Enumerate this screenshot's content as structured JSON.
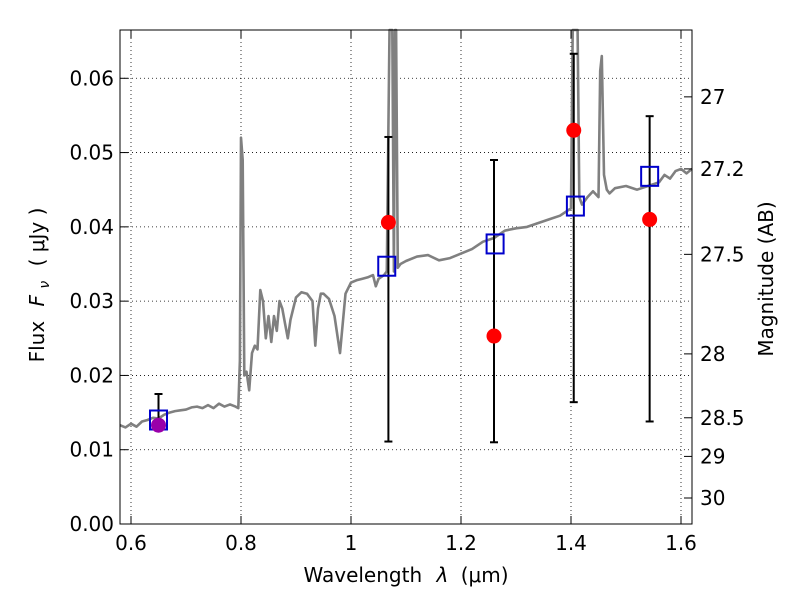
{
  "chart_data": {
    "type": "line",
    "xlabel": "Wavelength",
    "xlabel_symbol": "λ",
    "xlabel_unit": "(μm)",
    "ylabel": "Flux",
    "ylabel_symbol": "F",
    "ylabel_subscript": "ν",
    "ylabel_unit": "( μJy )",
    "y2label": "Magnitude (AB)",
    "xlim": [
      0.58,
      1.62
    ],
    "ylim": [
      0.0,
      0.0665
    ],
    "grid": true,
    "x_ticks": [
      {
        "value": 0.6,
        "label": "0.6"
      },
      {
        "value": 0.8,
        "label": "0.8"
      },
      {
        "value": 1.0,
        "label": "1"
      },
      {
        "value": 1.2,
        "label": "1.2"
      },
      {
        "value": 1.4,
        "label": "1.4"
      },
      {
        "value": 1.6,
        "label": "1.6"
      }
    ],
    "y_ticks": [
      {
        "value": 0.0,
        "label": "0.00"
      },
      {
        "value": 0.01,
        "label": "0.01"
      },
      {
        "value": 0.02,
        "label": "0.02"
      },
      {
        "value": 0.03,
        "label": "0.03"
      },
      {
        "value": 0.04,
        "label": "0.04"
      },
      {
        "value": 0.05,
        "label": "0.05"
      },
      {
        "value": 0.06,
        "label": "0.06"
      }
    ],
    "y2_ticks": [
      {
        "flux": 0.0575,
        "label": "27"
      },
      {
        "flux": 0.0478,
        "label": "27.2"
      },
      {
        "flux": 0.0363,
        "label": "27.5"
      },
      {
        "flux": 0.0229,
        "label": "28"
      },
      {
        "flux": 0.0143,
        "label": "28.5"
      },
      {
        "flux": 0.0091,
        "label": "29"
      },
      {
        "flux": 0.0035,
        "label": "30"
      }
    ],
    "series": [
      {
        "name": "model-spectrum",
        "kind": "line",
        "color": "#808080",
        "x": [
          0.58,
          0.59,
          0.6,
          0.61,
          0.62,
          0.63,
          0.64,
          0.65,
          0.66,
          0.67,
          0.68,
          0.69,
          0.7,
          0.71,
          0.72,
          0.73,
          0.74,
          0.75,
          0.76,
          0.77,
          0.78,
          0.79,
          0.795,
          0.798,
          0.8,
          0.803,
          0.806,
          0.81,
          0.815,
          0.82,
          0.825,
          0.83,
          0.835,
          0.84,
          0.845,
          0.85,
          0.855,
          0.86,
          0.865,
          0.87,
          0.875,
          0.88,
          0.885,
          0.89,
          0.9,
          0.91,
          0.92,
          0.93,
          0.935,
          0.94,
          0.945,
          0.95,
          0.96,
          0.97,
          0.98,
          0.99,
          1.0,
          1.01,
          1.02,
          1.03,
          1.04,
          1.045,
          1.05,
          1.06,
          1.065,
          1.07,
          1.075,
          1.078,
          1.08,
          1.082,
          1.085,
          1.09,
          1.1,
          1.12,
          1.14,
          1.16,
          1.18,
          1.2,
          1.22,
          1.24,
          1.26,
          1.28,
          1.3,
          1.32,
          1.34,
          1.36,
          1.38,
          1.4,
          1.403,
          1.406,
          1.409,
          1.412,
          1.415,
          1.42,
          1.43,
          1.44,
          1.45,
          1.453,
          1.456,
          1.46,
          1.465,
          1.47,
          1.48,
          1.5,
          1.52,
          1.54,
          1.56,
          1.57,
          1.58,
          1.59,
          1.6,
          1.61,
          1.62
        ],
        "y": [
          0.0133,
          0.013,
          0.0135,
          0.0131,
          0.0138,
          0.014,
          0.0143,
          0.0142,
          0.0147,
          0.015,
          0.0152,
          0.0153,
          0.0154,
          0.0157,
          0.0158,
          0.0156,
          0.016,
          0.0156,
          0.0162,
          0.0158,
          0.0161,
          0.0158,
          0.0156,
          0.022,
          0.052,
          0.049,
          0.02,
          0.0205,
          0.018,
          0.023,
          0.024,
          0.0235,
          0.0315,
          0.03,
          0.025,
          0.028,
          0.0245,
          0.028,
          0.026,
          0.03,
          0.029,
          0.027,
          0.025,
          0.0275,
          0.0305,
          0.0312,
          0.031,
          0.03,
          0.024,
          0.029,
          0.031,
          0.031,
          0.0303,
          0.028,
          0.023,
          0.031,
          0.0325,
          0.0328,
          0.033,
          0.0332,
          0.0335,
          0.032,
          0.033,
          0.0335,
          0.034,
          0.0665,
          0.0665,
          0.034,
          0.0665,
          0.0665,
          0.0345,
          0.035,
          0.0354,
          0.036,
          0.0362,
          0.0355,
          0.0358,
          0.0364,
          0.037,
          0.038,
          0.0385,
          0.0395,
          0.0398,
          0.04,
          0.0405,
          0.041,
          0.0415,
          0.0425,
          0.0665,
          0.0665,
          0.0665,
          0.0665,
          0.044,
          0.043,
          0.044,
          0.0448,
          0.044,
          0.061,
          0.063,
          0.047,
          0.045,
          0.0445,
          0.0452,
          0.0455,
          0.045,
          0.0455,
          0.046,
          0.047,
          0.0465,
          0.0475,
          0.0478,
          0.0472,
          0.0478
        ]
      },
      {
        "name": "model-photometry",
        "kind": "open-square",
        "color": "#0000cc",
        "x": [
          0.65,
          1.065,
          1.262,
          1.408,
          1.543
        ],
        "y": [
          0.014,
          0.0347,
          0.0377,
          0.0428,
          0.0468
        ]
      },
      {
        "name": "observed-photometry",
        "kind": "filled-circle-errorbar",
        "color": "#ff0000",
        "x": [
          0.65,
          1.068,
          1.26,
          1.405,
          1.543
        ],
        "y": [
          0.0133,
          0.0406,
          0.0253,
          0.053,
          0.041
        ],
        "yerr_low": [
          0.0132,
          0.0111,
          0.011,
          0.0164,
          0.0138
        ],
        "yerr_high": [
          0.0175,
          0.0521,
          0.049,
          0.0633,
          0.0549
        ]
      }
    ]
  }
}
